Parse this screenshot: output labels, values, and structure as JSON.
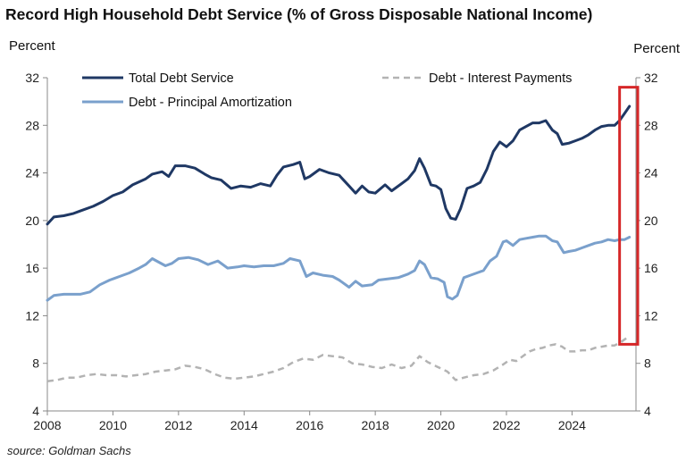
{
  "title": "Record High Household Debt Service (% of Gross Disposable National Income)",
  "source": "source: Goldman Sachs",
  "chart_data": {
    "type": "line",
    "title": "Record High Household Debt Service (% of Gross Disposable National Income)",
    "y_label_left": "Percent",
    "y_label_right": "Percent",
    "xlim": [
      2008,
      2025.95
    ],
    "ylim": [
      4,
      32
    ],
    "x_ticks": [
      2008,
      2010,
      2012,
      2014,
      2016,
      2018,
      2020,
      2022,
      2024
    ],
    "y_ticks": [
      4,
      8,
      12,
      16,
      20,
      24,
      28,
      32
    ],
    "grid": false,
    "legend_placement": "top",
    "highlight_box": {
      "x": [
        2025.45,
        2025.95
      ],
      "y": [
        9.6,
        31.2
      ],
      "color": "#d62728"
    },
    "series": [
      {
        "name": "Total Debt Service",
        "color": "#1f3864",
        "style": "solid",
        "points": [
          [
            2008.0,
            19.7
          ],
          [
            2008.2,
            20.3
          ],
          [
            2008.5,
            20.4
          ],
          [
            2008.8,
            20.6
          ],
          [
            2009.0,
            20.8
          ],
          [
            2009.4,
            21.2
          ],
          [
            2009.7,
            21.6
          ],
          [
            2010.0,
            22.1
          ],
          [
            2010.3,
            22.4
          ],
          [
            2010.6,
            23.0
          ],
          [
            2011.0,
            23.5
          ],
          [
            2011.2,
            23.9
          ],
          [
            2011.5,
            24.1
          ],
          [
            2011.7,
            23.7
          ],
          [
            2011.9,
            24.6
          ],
          [
            2012.2,
            24.6
          ],
          [
            2012.5,
            24.4
          ],
          [
            2012.8,
            23.9
          ],
          [
            2013.0,
            23.6
          ],
          [
            2013.3,
            23.4
          ],
          [
            2013.6,
            22.7
          ],
          [
            2013.9,
            22.9
          ],
          [
            2014.2,
            22.8
          ],
          [
            2014.5,
            23.1
          ],
          [
            2014.8,
            22.9
          ],
          [
            2015.0,
            23.8
          ],
          [
            2015.2,
            24.5
          ],
          [
            2015.5,
            24.7
          ],
          [
            2015.7,
            24.9
          ],
          [
            2015.85,
            23.5
          ],
          [
            2016.0,
            23.7
          ],
          [
            2016.3,
            24.3
          ],
          [
            2016.6,
            24.0
          ],
          [
            2016.9,
            23.8
          ],
          [
            2017.2,
            22.9
          ],
          [
            2017.4,
            22.3
          ],
          [
            2017.6,
            22.9
          ],
          [
            2017.8,
            22.4
          ],
          [
            2018.0,
            22.3
          ],
          [
            2018.3,
            23.0
          ],
          [
            2018.5,
            22.5
          ],
          [
            2018.8,
            23.1
          ],
          [
            2019.0,
            23.5
          ],
          [
            2019.2,
            24.2
          ],
          [
            2019.35,
            25.2
          ],
          [
            2019.5,
            24.4
          ],
          [
            2019.7,
            23.0
          ],
          [
            2019.85,
            22.9
          ],
          [
            2020.0,
            22.6
          ],
          [
            2020.15,
            21.0
          ],
          [
            2020.3,
            20.2
          ],
          [
            2020.45,
            20.1
          ],
          [
            2020.6,
            21.0
          ],
          [
            2020.8,
            22.7
          ],
          [
            2021.0,
            22.9
          ],
          [
            2021.2,
            23.2
          ],
          [
            2021.4,
            24.3
          ],
          [
            2021.6,
            25.8
          ],
          [
            2021.8,
            26.6
          ],
          [
            2022.0,
            26.2
          ],
          [
            2022.2,
            26.7
          ],
          [
            2022.4,
            27.6
          ],
          [
            2022.6,
            27.9
          ],
          [
            2022.8,
            28.2
          ],
          [
            2023.0,
            28.2
          ],
          [
            2023.2,
            28.4
          ],
          [
            2023.4,
            27.6
          ],
          [
            2023.55,
            27.3
          ],
          [
            2023.7,
            26.4
          ],
          [
            2023.9,
            26.5
          ],
          [
            2024.1,
            26.7
          ],
          [
            2024.3,
            26.9
          ],
          [
            2024.5,
            27.2
          ],
          [
            2024.7,
            27.6
          ],
          [
            2024.9,
            27.9
          ],
          [
            2025.1,
            28.0
          ],
          [
            2025.3,
            28.0
          ],
          [
            2025.45,
            28.4
          ],
          [
            2025.6,
            29.0
          ],
          [
            2025.75,
            29.6
          ]
        ]
      },
      {
        "name": "Debt - Principal Amortization",
        "color": "#7aa0cc",
        "style": "solid",
        "points": [
          [
            2008.0,
            13.3
          ],
          [
            2008.2,
            13.7
          ],
          [
            2008.5,
            13.8
          ],
          [
            2008.8,
            13.8
          ],
          [
            2009.0,
            13.8
          ],
          [
            2009.3,
            14.0
          ],
          [
            2009.6,
            14.6
          ],
          [
            2009.9,
            15.0
          ],
          [
            2010.2,
            15.3
          ],
          [
            2010.5,
            15.6
          ],
          [
            2010.8,
            16.0
          ],
          [
            2011.0,
            16.3
          ],
          [
            2011.2,
            16.8
          ],
          [
            2011.4,
            16.5
          ],
          [
            2011.6,
            16.2
          ],
          [
            2011.8,
            16.4
          ],
          [
            2012.0,
            16.8
          ],
          [
            2012.3,
            16.9
          ],
          [
            2012.6,
            16.7
          ],
          [
            2012.9,
            16.3
          ],
          [
            2013.2,
            16.6
          ],
          [
            2013.5,
            16.0
          ],
          [
            2013.8,
            16.1
          ],
          [
            2014.0,
            16.2
          ],
          [
            2014.3,
            16.1
          ],
          [
            2014.6,
            16.2
          ],
          [
            2014.9,
            16.2
          ],
          [
            2015.2,
            16.4
          ],
          [
            2015.4,
            16.8
          ],
          [
            2015.7,
            16.6
          ],
          [
            2015.9,
            15.3
          ],
          [
            2016.1,
            15.6
          ],
          [
            2016.4,
            15.4
          ],
          [
            2016.7,
            15.3
          ],
          [
            2016.9,
            15.0
          ],
          [
            2017.2,
            14.4
          ],
          [
            2017.4,
            14.9
          ],
          [
            2017.6,
            14.5
          ],
          [
            2017.9,
            14.6
          ],
          [
            2018.1,
            15.0
          ],
          [
            2018.4,
            15.1
          ],
          [
            2018.7,
            15.2
          ],
          [
            2019.0,
            15.5
          ],
          [
            2019.2,
            15.8
          ],
          [
            2019.35,
            16.6
          ],
          [
            2019.5,
            16.3
          ],
          [
            2019.7,
            15.2
          ],
          [
            2019.9,
            15.1
          ],
          [
            2020.1,
            14.8
          ],
          [
            2020.2,
            13.6
          ],
          [
            2020.35,
            13.4
          ],
          [
            2020.5,
            13.7
          ],
          [
            2020.7,
            15.2
          ],
          [
            2020.9,
            15.4
          ],
          [
            2021.1,
            15.6
          ],
          [
            2021.3,
            15.8
          ],
          [
            2021.5,
            16.6
          ],
          [
            2021.7,
            17.0
          ],
          [
            2021.9,
            18.2
          ],
          [
            2022.0,
            18.3
          ],
          [
            2022.2,
            17.9
          ],
          [
            2022.4,
            18.4
          ],
          [
            2022.6,
            18.5
          ],
          [
            2022.8,
            18.6
          ],
          [
            2023.0,
            18.7
          ],
          [
            2023.2,
            18.7
          ],
          [
            2023.4,
            18.3
          ],
          [
            2023.55,
            18.2
          ],
          [
            2023.75,
            17.3
          ],
          [
            2023.9,
            17.4
          ],
          [
            2024.1,
            17.5
          ],
          [
            2024.3,
            17.7
          ],
          [
            2024.5,
            17.9
          ],
          [
            2024.7,
            18.1
          ],
          [
            2024.9,
            18.2
          ],
          [
            2025.1,
            18.4
          ],
          [
            2025.3,
            18.3
          ],
          [
            2025.45,
            18.4
          ],
          [
            2025.6,
            18.4
          ],
          [
            2025.75,
            18.6
          ]
        ]
      },
      {
        "name": "Debt - Interest Payments",
        "color": "#b3b3b3",
        "style": "dashed",
        "points": [
          [
            2008.0,
            6.5
          ],
          [
            2008.3,
            6.6
          ],
          [
            2008.6,
            6.8
          ],
          [
            2008.9,
            6.8
          ],
          [
            2009.2,
            7.0
          ],
          [
            2009.5,
            7.1
          ],
          [
            2009.8,
            7.0
          ],
          [
            2010.1,
            7.0
          ],
          [
            2010.4,
            6.9
          ],
          [
            2010.7,
            7.0
          ],
          [
            2011.0,
            7.1
          ],
          [
            2011.3,
            7.3
          ],
          [
            2011.6,
            7.4
          ],
          [
            2011.9,
            7.5
          ],
          [
            2012.2,
            7.8
          ],
          [
            2012.5,
            7.7
          ],
          [
            2012.8,
            7.5
          ],
          [
            2013.1,
            7.1
          ],
          [
            2013.4,
            6.8
          ],
          [
            2013.7,
            6.7
          ],
          [
            2014.0,
            6.8
          ],
          [
            2014.3,
            6.9
          ],
          [
            2014.6,
            7.1
          ],
          [
            2014.9,
            7.3
          ],
          [
            2015.2,
            7.6
          ],
          [
            2015.5,
            8.1
          ],
          [
            2015.8,
            8.4
          ],
          [
            2016.1,
            8.3
          ],
          [
            2016.4,
            8.7
          ],
          [
            2016.7,
            8.6
          ],
          [
            2017.0,
            8.5
          ],
          [
            2017.3,
            8.0
          ],
          [
            2017.6,
            7.9
          ],
          [
            2017.9,
            7.7
          ],
          [
            2018.2,
            7.6
          ],
          [
            2018.5,
            7.9
          ],
          [
            2018.8,
            7.6
          ],
          [
            2019.1,
            7.8
          ],
          [
            2019.35,
            8.6
          ],
          [
            2019.6,
            8.1
          ],
          [
            2019.9,
            7.7
          ],
          [
            2020.2,
            7.3
          ],
          [
            2020.45,
            6.6
          ],
          [
            2020.7,
            6.8
          ],
          [
            2021.0,
            7.0
          ],
          [
            2021.3,
            7.1
          ],
          [
            2021.6,
            7.4
          ],
          [
            2021.9,
            7.9
          ],
          [
            2022.1,
            8.3
          ],
          [
            2022.3,
            8.2
          ],
          [
            2022.5,
            8.6
          ],
          [
            2022.7,
            9.0
          ],
          [
            2022.9,
            9.2
          ],
          [
            2023.1,
            9.3
          ],
          [
            2023.3,
            9.5
          ],
          [
            2023.5,
            9.6
          ],
          [
            2023.7,
            9.4
          ],
          [
            2023.9,
            9.0
          ],
          [
            2024.1,
            9.0
          ],
          [
            2024.3,
            9.1
          ],
          [
            2024.5,
            9.1
          ],
          [
            2024.7,
            9.3
          ],
          [
            2024.9,
            9.4
          ],
          [
            2025.1,
            9.5
          ],
          [
            2025.3,
            9.5
          ],
          [
            2025.5,
            9.8
          ],
          [
            2025.75,
            10.3
          ]
        ]
      }
    ]
  }
}
